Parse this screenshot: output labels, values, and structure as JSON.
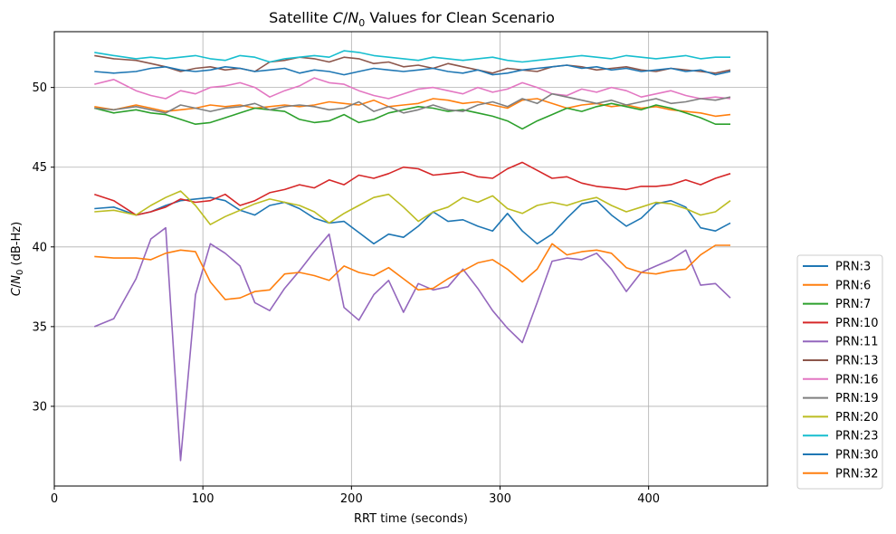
{
  "chart_data": {
    "type": "line",
    "title": {
      "prefix": "Satellite ",
      "italic1": "C",
      "slash": "/",
      "italic2": "N",
      "sub": "0",
      "suffix": " Values for Clean Scenario"
    },
    "xlabel": "RRT time (seconds)",
    "ylabel": {
      "italic1": "C",
      "slash": "/",
      "italic2": "N",
      "sub": "0",
      "suffix": " (dB-Hz)"
    },
    "xlim": [
      0,
      480
    ],
    "ylim": [
      25,
      53.5
    ],
    "xticks": [
      0,
      100,
      200,
      300,
      400
    ],
    "yticks": [
      30,
      35,
      40,
      45,
      50
    ],
    "grid": true,
    "legend_position": "outside-right-bottom",
    "x": [
      27,
      40,
      55,
      65,
      75,
      85,
      95,
      105,
      115,
      125,
      135,
      145,
      155,
      165,
      175,
      185,
      195,
      205,
      215,
      225,
      235,
      245,
      255,
      265,
      275,
      285,
      295,
      305,
      315,
      325,
      335,
      345,
      355,
      365,
      375,
      385,
      395,
      405,
      415,
      425,
      435,
      445,
      455
    ],
    "series": [
      {
        "name": "PRN:3",
        "color": "#1f77b4",
        "values": [
          42.4,
          42.5,
          42.0,
          42.2,
          42.6,
          42.9,
          43.0,
          43.1,
          42.9,
          42.3,
          42.0,
          42.6,
          42.8,
          42.4,
          41.8,
          41.5,
          41.6,
          40.9,
          40.2,
          40.8,
          40.6,
          41.3,
          42.2,
          41.6,
          41.7,
          41.3,
          41.0,
          42.1,
          41.0,
          40.2,
          40.8,
          41.8,
          42.7,
          42.9,
          42.0,
          41.3,
          41.8,
          42.7,
          42.9,
          42.5,
          41.2,
          41.0,
          41.5
        ]
      },
      {
        "name": "PRN:6",
        "color": "#ff7f0e",
        "values": [
          48.8,
          48.6,
          48.9,
          48.7,
          48.5,
          48.6,
          48.7,
          48.9,
          48.8,
          48.9,
          48.7,
          48.8,
          48.9,
          48.8,
          48.9,
          49.1,
          49.0,
          48.9,
          49.2,
          48.8,
          48.9,
          49.0,
          49.3,
          49.2,
          49.0,
          49.1,
          48.9,
          48.7,
          49.2,
          49.3,
          49.0,
          48.7,
          48.9,
          49.0,
          48.8,
          48.9,
          48.7,
          48.8,
          48.6,
          48.5,
          48.4,
          48.2,
          48.3
        ]
      },
      {
        "name": "PRN:7",
        "color": "#2ca02c",
        "values": [
          48.7,
          48.4,
          48.6,
          48.4,
          48.3,
          48.0,
          47.7,
          47.8,
          48.1,
          48.4,
          48.7,
          48.6,
          48.5,
          48.0,
          47.8,
          47.9,
          48.3,
          47.8,
          48.0,
          48.4,
          48.6,
          48.8,
          48.7,
          48.5,
          48.6,
          48.4,
          48.2,
          47.9,
          47.4,
          47.9,
          48.3,
          48.7,
          48.5,
          48.8,
          49.0,
          48.8,
          48.6,
          48.9,
          48.7,
          48.4,
          48.1,
          47.7,
          47.7
        ]
      },
      {
        "name": "PRN:10",
        "color": "#d62728",
        "values": [
          43.3,
          42.9,
          42.0,
          42.2,
          42.5,
          43.0,
          42.8,
          42.9,
          43.3,
          42.6,
          42.9,
          43.4,
          43.6,
          43.9,
          43.7,
          44.2,
          43.9,
          44.5,
          44.3,
          44.6,
          45.0,
          44.9,
          44.5,
          44.6,
          44.7,
          44.4,
          44.3,
          44.9,
          45.3,
          44.8,
          44.3,
          44.4,
          44.0,
          43.8,
          43.7,
          43.6,
          43.8,
          43.8,
          43.9,
          44.2,
          43.9,
          44.3,
          44.6
        ]
      },
      {
        "name": "PRN:11",
        "color": "#9467bd",
        "values": [
          35.0,
          35.5,
          38.0,
          40.5,
          41.2,
          26.6,
          37.0,
          40.2,
          39.6,
          38.8,
          36.5,
          36.0,
          37.4,
          38.5,
          39.7,
          40.8,
          36.2,
          35.4,
          37.0,
          37.9,
          35.9,
          37.7,
          37.3,
          37.5,
          38.6,
          37.4,
          36.0,
          34.9,
          34.0,
          36.5,
          39.1,
          39.3,
          39.2,
          39.6,
          38.6,
          37.2,
          38.4,
          38.8,
          39.2,
          39.8,
          37.6,
          37.7,
          36.8
        ]
      },
      {
        "name": "PRN:13",
        "color": "#8c564b",
        "values": [
          52.0,
          51.8,
          51.7,
          51.5,
          51.3,
          51.0,
          51.2,
          51.3,
          51.1,
          51.2,
          51.0,
          51.6,
          51.7,
          51.9,
          51.8,
          51.6,
          51.9,
          51.8,
          51.5,
          51.6,
          51.3,
          51.4,
          51.2,
          51.5,
          51.3,
          51.1,
          50.9,
          51.2,
          51.1,
          51.0,
          51.3,
          51.4,
          51.3,
          51.1,
          51.2,
          51.3,
          51.1,
          51.0,
          51.2,
          51.1,
          51.0,
          50.9,
          51.1
        ]
      },
      {
        "name": "PRN:16",
        "color": "#e377c2",
        "values": [
          50.2,
          50.5,
          49.8,
          49.5,
          49.3,
          49.8,
          49.6,
          50.0,
          50.1,
          50.3,
          50.0,
          49.4,
          49.8,
          50.1,
          50.6,
          50.3,
          50.2,
          49.8,
          49.5,
          49.3,
          49.6,
          49.9,
          50.0,
          49.8,
          49.6,
          50.0,
          49.7,
          49.9,
          50.3,
          50.0,
          49.6,
          49.5,
          49.9,
          49.7,
          50.0,
          49.8,
          49.4,
          49.6,
          49.8,
          49.5,
          49.3,
          49.4,
          49.3
        ]
      },
      {
        "name": "PRN:19",
        "color": "#7f7f7f",
        "values": [
          48.7,
          48.6,
          48.8,
          48.6,
          48.4,
          48.9,
          48.7,
          48.5,
          48.7,
          48.8,
          49.0,
          48.6,
          48.8,
          48.9,
          48.8,
          48.6,
          48.7,
          49.1,
          48.5,
          48.8,
          48.4,
          48.6,
          48.9,
          48.6,
          48.5,
          48.9,
          49.1,
          48.8,
          49.3,
          49.0,
          49.6,
          49.4,
          49.2,
          49.0,
          49.2,
          48.9,
          49.1,
          49.3,
          49.0,
          49.1,
          49.3,
          49.2,
          49.4
        ]
      },
      {
        "name": "PRN:20",
        "color": "#bcbd22",
        "values": [
          42.2,
          42.3,
          42.0,
          42.6,
          43.1,
          43.5,
          42.6,
          41.4,
          41.9,
          42.3,
          42.7,
          43.0,
          42.8,
          42.6,
          42.2,
          41.5,
          42.1,
          42.6,
          43.1,
          43.3,
          42.5,
          41.6,
          42.2,
          42.5,
          43.1,
          42.8,
          43.2,
          42.4,
          42.1,
          42.6,
          42.8,
          42.6,
          42.9,
          43.1,
          42.6,
          42.2,
          42.5,
          42.8,
          42.7,
          42.4,
          42.0,
          42.2,
          42.9
        ]
      },
      {
        "name": "PRN:23",
        "color": "#17becf",
        "values": [
          52.2,
          52.0,
          51.8,
          51.9,
          51.8,
          51.9,
          52.0,
          51.8,
          51.7,
          52.0,
          51.9,
          51.6,
          51.8,
          51.9,
          52.0,
          51.9,
          52.3,
          52.2,
          52.0,
          51.9,
          51.8,
          51.7,
          51.9,
          51.8,
          51.7,
          51.8,
          51.9,
          51.7,
          51.6,
          51.7,
          51.8,
          51.9,
          52.0,
          51.9,
          51.8,
          52.0,
          51.9,
          51.8,
          51.9,
          52.0,
          51.8,
          51.9,
          51.9
        ]
      },
      {
        "name": "PRN:30",
        "color": "#1f77b4",
        "values": [
          51.0,
          50.9,
          51.0,
          51.2,
          51.3,
          51.1,
          51.0,
          51.1,
          51.3,
          51.2,
          51.0,
          51.1,
          51.2,
          50.9,
          51.1,
          51.0,
          50.8,
          51.0,
          51.2,
          51.1,
          51.0,
          51.1,
          51.2,
          51.0,
          50.9,
          51.1,
          50.8,
          50.9,
          51.1,
          51.2,
          51.3,
          51.4,
          51.2,
          51.3,
          51.1,
          51.2,
          51.0,
          51.1,
          51.2,
          51.0,
          51.1,
          50.8,
          51.0
        ]
      },
      {
        "name": "PRN:32",
        "color": "#ff7f0e",
        "values": [
          39.4,
          39.3,
          39.3,
          39.2,
          39.6,
          39.8,
          39.7,
          37.8,
          36.7,
          36.8,
          37.2,
          37.3,
          38.3,
          38.4,
          38.2,
          37.9,
          38.8,
          38.4,
          38.2,
          38.7,
          38.0,
          37.3,
          37.4,
          38.0,
          38.5,
          39.0,
          39.2,
          38.6,
          37.8,
          38.6,
          40.2,
          39.5,
          39.7,
          39.8,
          39.6,
          38.7,
          38.4,
          38.3,
          38.5,
          38.6,
          39.5,
          40.1,
          40.1
        ]
      }
    ]
  }
}
